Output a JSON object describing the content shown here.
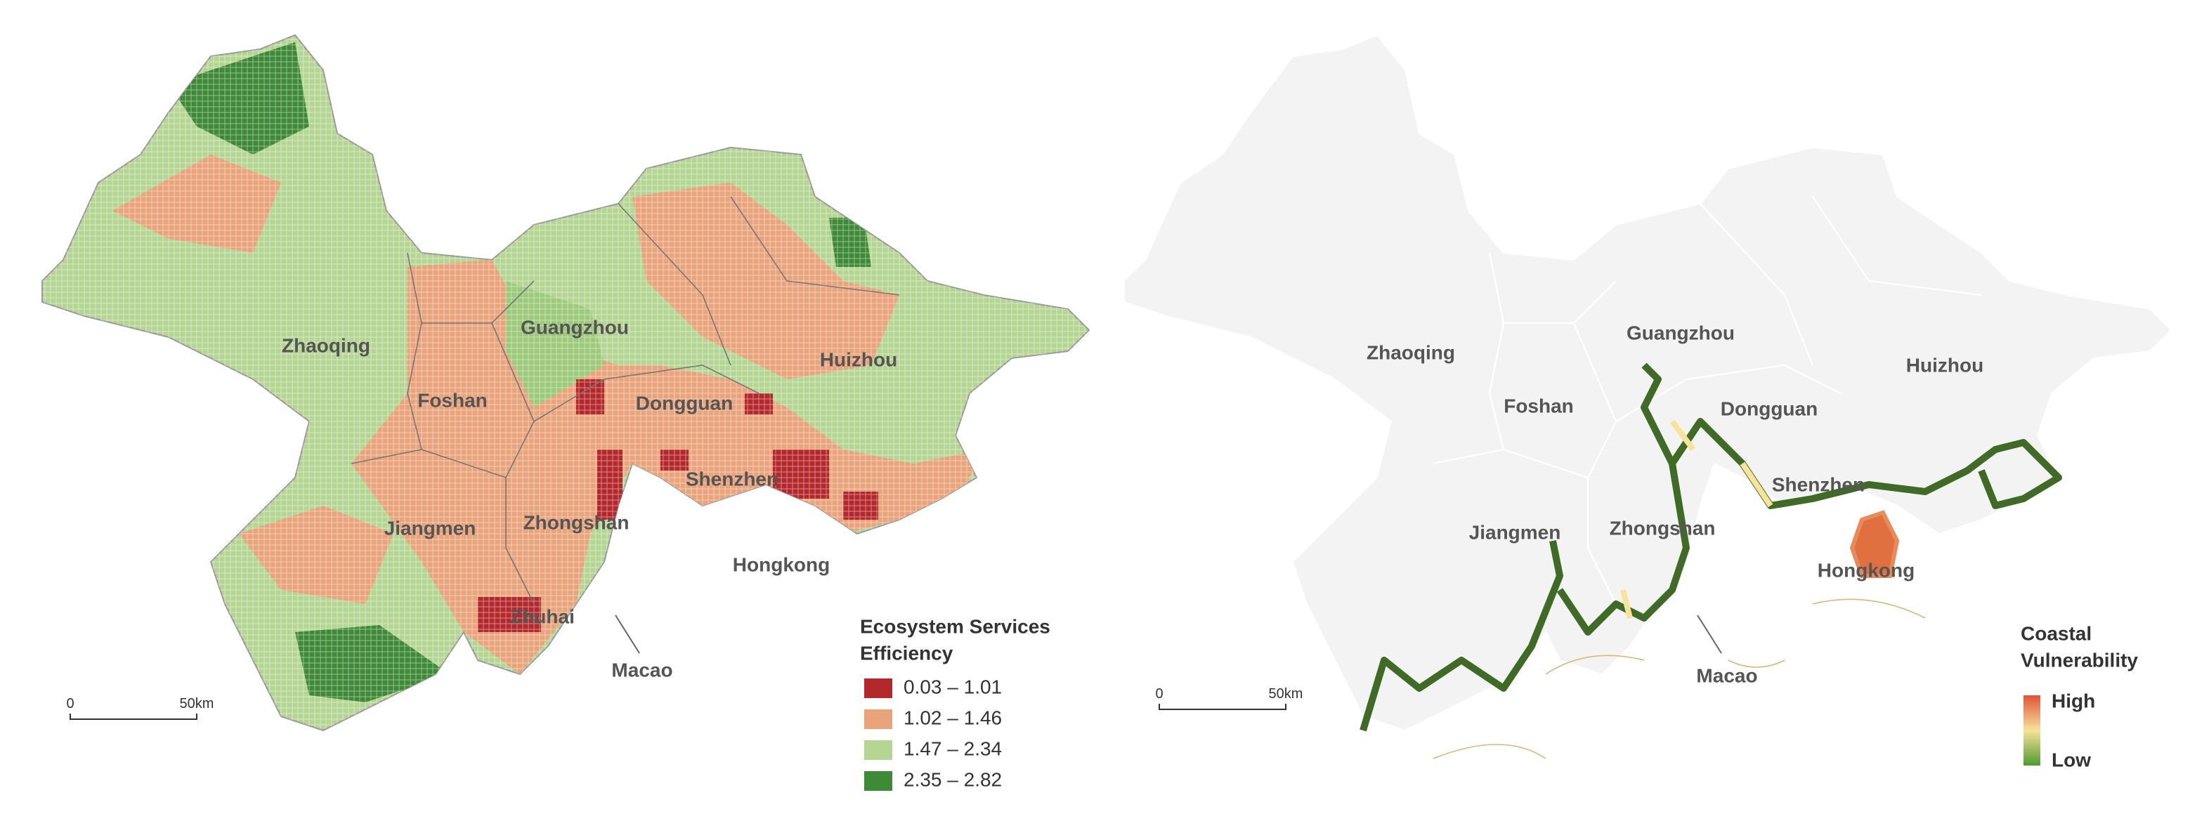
{
  "maps": [
    {
      "city_labels": [
        "Zhaoqing",
        "Foshan",
        "Guangzhou",
        "Dongguan",
        "Huizhou",
        "Shenzhen",
        "Jiangmen",
        "Zhongshan",
        "Zhuhai",
        "Hongkong",
        "Macao"
      ],
      "scale_bar": {
        "start": "0",
        "end": "50km"
      },
      "legend": {
        "title": [
          "Ecosystem Services",
          "Efficiency"
        ],
        "classes": [
          {
            "label": "0.03 – 1.01",
            "color": "#b3282b"
          },
          {
            "label": "1.02 – 1.46",
            "color": "#e9a47c"
          },
          {
            "label": "1.47 – 2.34",
            "color": "#b5d693"
          },
          {
            "label": "2.35 – 2.82",
            "color": "#3f8a36"
          }
        ]
      }
    },
    {
      "city_labels": [
        "Zhaoqing",
        "Foshan",
        "Guangzhou",
        "Dongguan",
        "Huizhou",
        "Shenzhen",
        "Jiangmen",
        "Zhongshan",
        "Hongkong",
        "Macao"
      ],
      "scale_bar": {
        "start": "0",
        "end": "50km"
      },
      "legend": {
        "title": [
          "Coastal",
          "Vulnerability"
        ],
        "high": "High",
        "low": "Low",
        "colors": [
          "#e0523a",
          "#f7e39a",
          "#4e9a2f"
        ]
      }
    }
  ]
}
